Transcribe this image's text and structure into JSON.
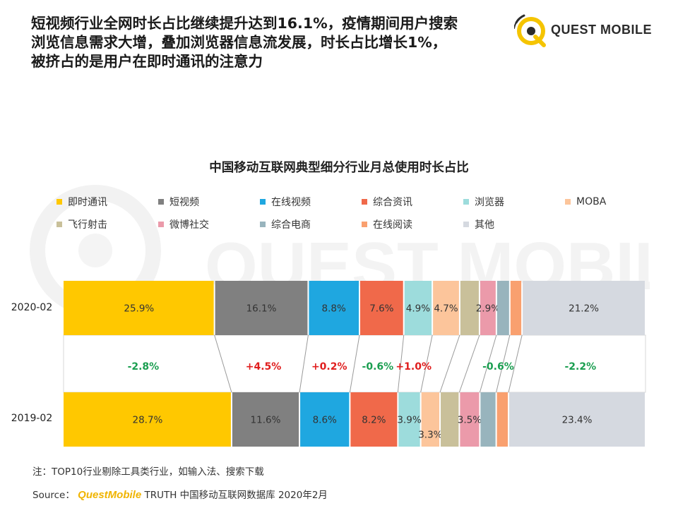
{
  "headline": {
    "line1": "短视频行业全网时长占比继续提升达到16.1%，疫情期间用户搜索",
    "line2": "浏览信息需求大增，叠加浏览器信息流发展，时长占比增长1%，",
    "line3": "被挤占的是用户在即时通讯的注意力"
  },
  "brand": {
    "text": "QUEST MOBILE",
    "icon": "quest-mobile-logo"
  },
  "watermark": {
    "text": "QUEST MOBILE"
  },
  "footnote": "注：TOP10行业剔除工具类行业，如输入法、搜索下载",
  "source": {
    "prefix": "Source：",
    "brand": "QuestMobile",
    "suffix": "TRUTH 中国移动互联网数据库 2020年2月"
  },
  "chart_data": {
    "type": "bar",
    "orientation": "horizontal",
    "stacked": true,
    "normalized": true,
    "title": "中国移动互联网典型细分行业月总使用时长占比",
    "legend_position": "top",
    "categories": [
      "2020-02",
      "2019-02"
    ],
    "series": [
      {
        "name": "即时通讯",
        "color": "#ffc800",
        "values": [
          25.9,
          28.7
        ],
        "labels": [
          "25.9%",
          "28.7%"
        ]
      },
      {
        "name": "短视频",
        "color": "#808080",
        "values": [
          16.1,
          11.6
        ],
        "labels": [
          "16.1%",
          "11.6%"
        ]
      },
      {
        "name": "在线视频",
        "color": "#1fa7e0",
        "values": [
          8.8,
          8.6
        ],
        "labels": [
          "8.8%",
          "8.6%"
        ]
      },
      {
        "name": "综合资讯",
        "color": "#f0694a",
        "values": [
          7.6,
          8.2
        ],
        "labels": [
          "7.6%",
          "8.2%"
        ]
      },
      {
        "name": "浏览器",
        "color": "#9ddcdc",
        "values": [
          4.9,
          3.9
        ],
        "labels": [
          "4.9%",
          "3.9%"
        ]
      },
      {
        "name": "MOBA",
        "color": "#fcc59b",
        "values": [
          4.7,
          3.3
        ],
        "labels": [
          "4.7%",
          "3.3%"
        ]
      },
      {
        "name": "飞行射击",
        "color": "#c9c09a",
        "values": [
          3.4,
          3.3
        ],
        "labels": [
          "",
          ""
        ]
      },
      {
        "name": "微博社交",
        "color": "#eb9aaa",
        "values": [
          2.9,
          3.5
        ],
        "labels": [
          "2.9%",
          "3.5%"
        ]
      },
      {
        "name": "综合电商",
        "color": "#98b4bd",
        "values": [
          2.3,
          2.8
        ],
        "labels": [
          "",
          ""
        ]
      },
      {
        "name": "在线阅读",
        "color": "#f9a06f",
        "values": [
          2.1,
          2.1
        ],
        "labels": [
          "",
          ""
        ]
      },
      {
        "name": "其他",
        "color": "#d5d9e0",
        "values": [
          21.2,
          23.4
        ],
        "labels": [
          "21.2%",
          "23.4%"
        ]
      }
    ],
    "changes": [
      {
        "text": "-2.8%",
        "color": "#1a9e50"
      },
      {
        "text": "+4.5%",
        "color": "#e01e1e"
      },
      {
        "text": "+0.2%",
        "color": "#e01e1e"
      },
      {
        "text": "-0.6%",
        "color": "#1a9e50"
      },
      {
        "text": "+1.0%",
        "color": "#e01e1e"
      },
      {
        "text": "-0.6%",
        "color": "#1a9e50"
      },
      {
        "text": "-2.2%",
        "color": "#1a9e50"
      }
    ]
  }
}
